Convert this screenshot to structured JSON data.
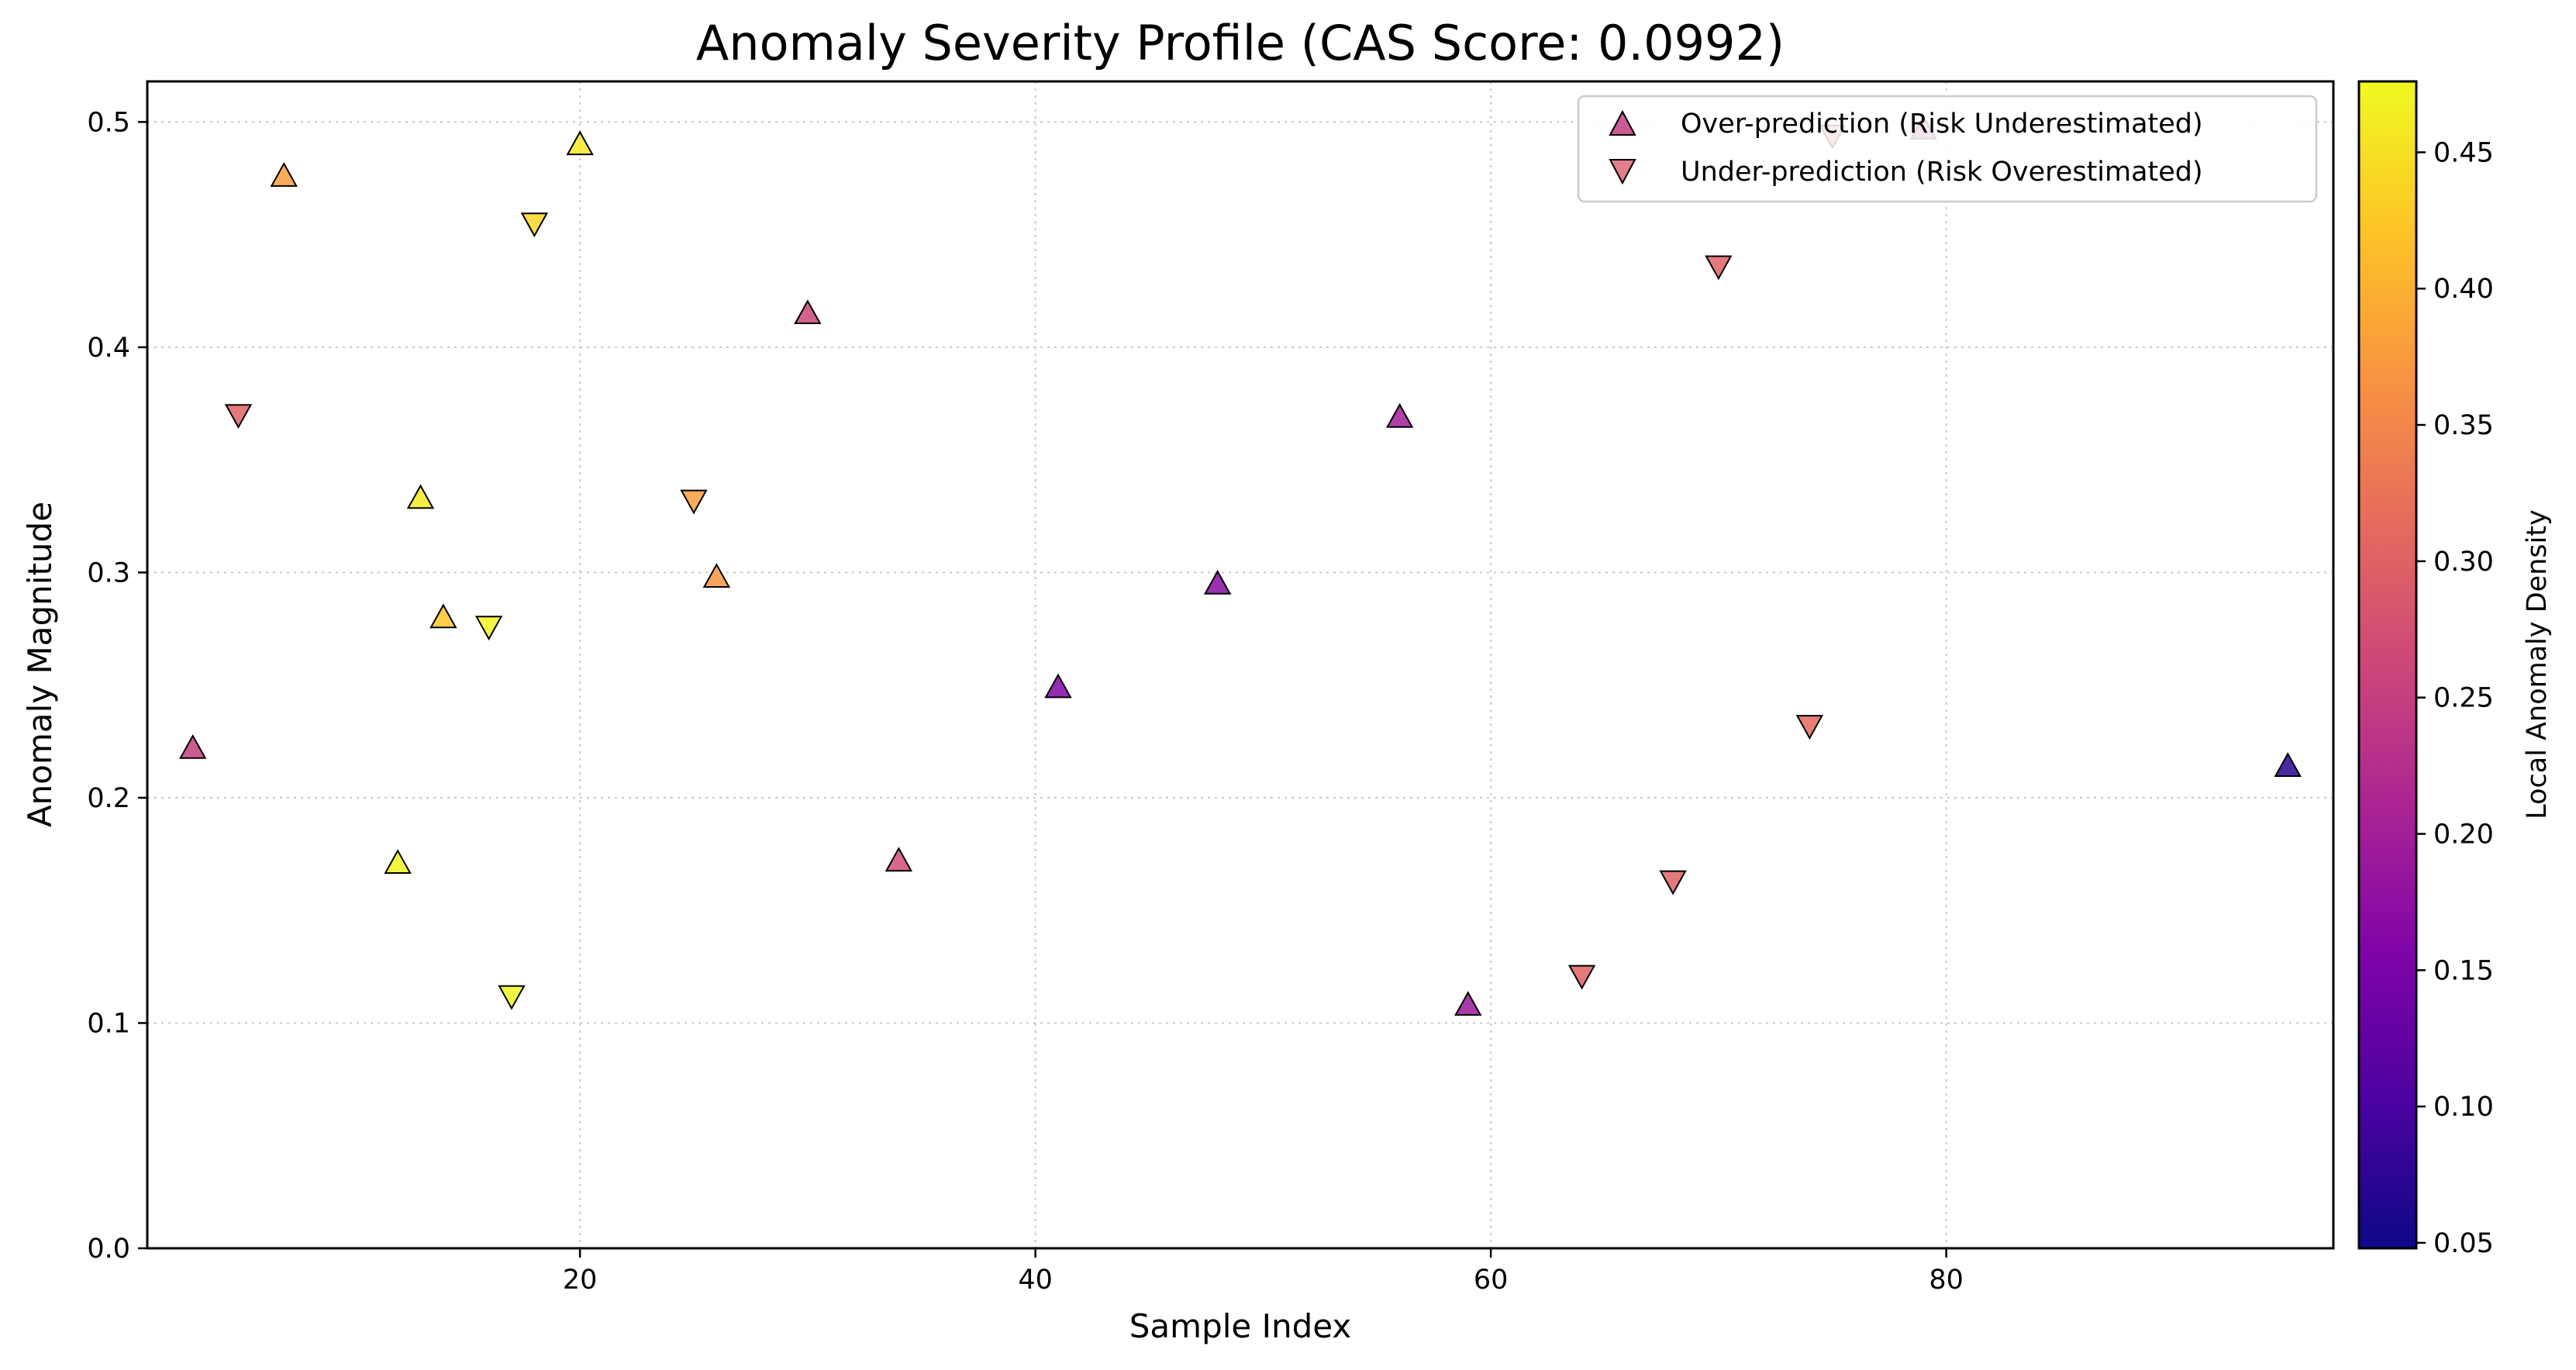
{
  "chart_data": {
    "type": "scatter",
    "title": "Anomaly Severity Profile (CAS Score: 0.0992)",
    "xlabel": "Sample Index",
    "ylabel": "Anomaly Magnitude",
    "xlim": [
      1,
      97
    ],
    "ylim": [
      0,
      0.518
    ],
    "x_ticks": [
      20,
      40,
      60,
      80
    ],
    "y_ticks": [
      0.0,
      0.1,
      0.2,
      0.3,
      0.4,
      0.5
    ],
    "grid": true,
    "legend_position": "top-right",
    "colormap": "plasma",
    "colorbar": {
      "label": "Local Anomaly Density",
      "range": [
        0.048,
        0.476
      ],
      "ticks": [
        0.05,
        0.1,
        0.15,
        0.2,
        0.25,
        0.3,
        0.35,
        0.4,
        0.45
      ]
    },
    "series": [
      {
        "name": "Over-prediction (Risk Underestimated)",
        "marker": "triangle-up",
        "legend_color": "#c23d81",
        "points": [
          {
            "x": 3,
            "y": 0.222,
            "c": 0.25
          },
          {
            "x": 7,
            "y": 0.476,
            "c": 0.38
          },
          {
            "x": 12,
            "y": 0.171,
            "c": 0.47
          },
          {
            "x": 13,
            "y": 0.333,
            "c": 0.46
          },
          {
            "x": 14,
            "y": 0.28,
            "c": 0.42
          },
          {
            "x": 20,
            "y": 0.49,
            "c": 0.46
          },
          {
            "x": 26,
            "y": 0.298,
            "c": 0.37
          },
          {
            "x": 30,
            "y": 0.415,
            "c": 0.26
          },
          {
            "x": 34,
            "y": 0.172,
            "c": 0.27
          },
          {
            "x": 41,
            "y": 0.249,
            "c": 0.16
          },
          {
            "x": 48,
            "y": 0.295,
            "c": 0.17
          },
          {
            "x": 56,
            "y": 0.369,
            "c": 0.2
          },
          {
            "x": 59,
            "y": 0.108,
            "c": 0.19
          },
          {
            "x": 79,
            "y": 0.497,
            "c": 0.22
          },
          {
            "x": 95,
            "y": 0.214,
            "c": 0.07
          }
        ]
      },
      {
        "name": "Under-prediction (Risk Overestimated)",
        "marker": "triangle-down",
        "legend_color": "#dc6a78",
        "points": [
          {
            "x": 5,
            "y": 0.37,
            "c": 0.3
          },
          {
            "x": 16,
            "y": 0.276,
            "c": 0.47
          },
          {
            "x": 17,
            "y": 0.112,
            "c": 0.47
          },
          {
            "x": 18,
            "y": 0.455,
            "c": 0.44
          },
          {
            "x": 25,
            "y": 0.332,
            "c": 0.38
          },
          {
            "x": 64,
            "y": 0.121,
            "c": 0.3
          },
          {
            "x": 68,
            "y": 0.163,
            "c": 0.3
          },
          {
            "x": 70,
            "y": 0.436,
            "c": 0.3
          },
          {
            "x": 74,
            "y": 0.232,
            "c": 0.31
          },
          {
            "x": 75,
            "y": 0.494,
            "c": 0.3
          }
        ]
      }
    ]
  }
}
